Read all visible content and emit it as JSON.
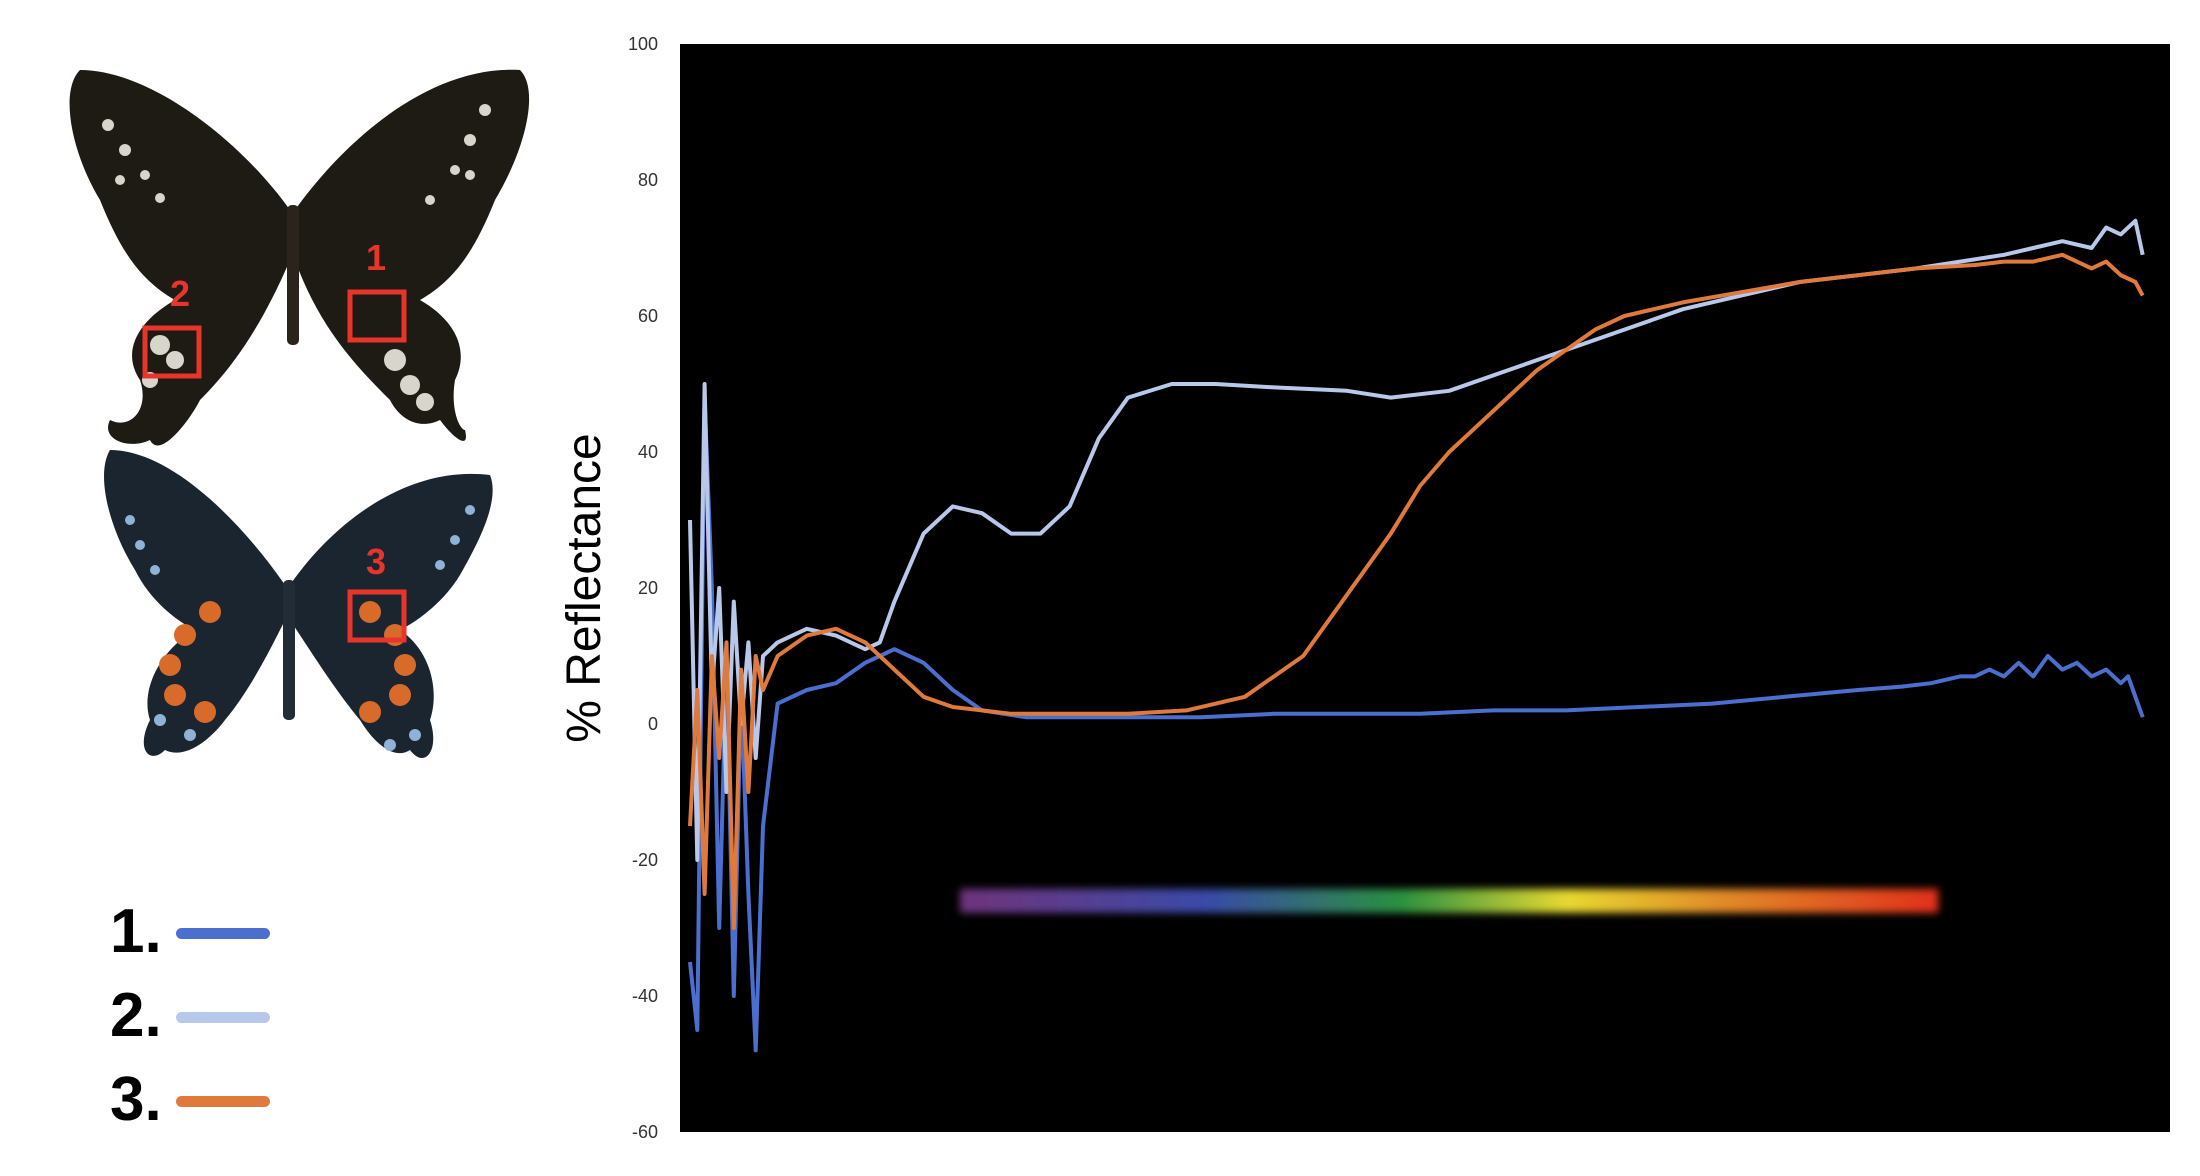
{
  "figure": {
    "boxes": [
      {
        "label": "1"
      },
      {
        "label": "2"
      },
      {
        "label": "3"
      }
    ],
    "butterfly_colors": {
      "top_wing": "#1e1a14",
      "bottom_wing": "#1b2530",
      "spot_pale": "#d8d6cc",
      "spot_blue": "#8fb2d6",
      "spot_orange": "#d86a2a",
      "box": "#e8352c"
    }
  },
  "legend": [
    {
      "label": "1.",
      "color": "#4a6fcf"
    },
    {
      "label": "2.",
      "color": "#b8c8ea"
    },
    {
      "label": "3.",
      "color": "#e07a3c"
    }
  ],
  "chart_data": {
    "type": "line",
    "title": "",
    "xlabel": "",
    "ylabel": "% Reflectance",
    "ylim": [
      -60,
      100
    ],
    "yticks": [
      100,
      80,
      60,
      40,
      20,
      0,
      -20,
      -40,
      -60
    ],
    "xlim": [
      0,
      100
    ],
    "background": "#000000",
    "grid": false,
    "series": [
      {
        "name": "1.",
        "color": "#4a6fcf",
        "x": [
          0,
          0.5,
          1,
          1.5,
          2,
          2.5,
          3,
          3.5,
          4,
          4.5,
          5,
          6,
          8,
          10,
          12,
          14,
          16,
          18,
          20,
          23,
          26,
          30,
          35,
          40,
          45,
          50,
          55,
          60,
          65,
          70,
          75,
          80,
          83,
          85,
          87,
          88,
          89,
          90,
          91,
          92,
          93,
          94,
          95,
          96,
          97,
          98,
          98.5,
          99,
          99.5
        ],
        "values": [
          -35,
          -45,
          48,
          20,
          -30,
          10,
          -40,
          5,
          -25,
          -48,
          -15,
          3,
          5,
          6,
          9,
          11,
          9,
          5,
          2,
          1,
          1,
          1,
          1,
          1.5,
          1.5,
          1.5,
          2,
          2,
          2.5,
          3,
          4,
          5,
          5.5,
          6,
          7,
          7,
          8,
          7,
          9,
          7,
          10,
          8,
          9,
          7,
          8,
          6,
          7,
          4,
          1
        ]
      },
      {
        "name": "2.",
        "color": "#b8c8ea",
        "x": [
          0,
          0.5,
          1,
          1.5,
          2,
          2.5,
          3,
          3.5,
          4,
          4.5,
          5,
          6,
          8,
          10,
          12,
          13,
          14,
          16,
          18,
          20,
          22,
          24,
          26,
          28,
          30,
          33,
          36,
          40,
          45,
          48,
          52,
          56,
          60,
          64,
          68,
          72,
          76,
          80,
          84,
          87,
          90,
          92,
          94,
          96,
          97,
          98,
          99,
          99.5
        ],
        "values": [
          30,
          -20,
          50,
          5,
          20,
          -10,
          18,
          0,
          12,
          -5,
          10,
          12,
          14,
          13,
          11,
          12,
          18,
          28,
          32,
          31,
          28,
          28,
          32,
          42,
          48,
          50,
          50,
          49.5,
          49,
          48,
          49,
          52,
          55,
          58,
          61,
          63,
          65,
          66,
          67,
          68,
          69,
          70,
          71,
          70,
          73,
          72,
          74,
          69
        ]
      },
      {
        "name": "3.",
        "color": "#e07a3c",
        "x": [
          0,
          0.5,
          1,
          1.5,
          2,
          2.5,
          3,
          3.5,
          4,
          4.5,
          5,
          6,
          8,
          10,
          12,
          14,
          16,
          18,
          20,
          22,
          26,
          30,
          34,
          38,
          42,
          44,
          46,
          48,
          50,
          52,
          54,
          56,
          58,
          60,
          62,
          64,
          66,
          68,
          72,
          76,
          80,
          84,
          88,
          90,
          92,
          94,
          96,
          97,
          98,
          99,
          99.5
        ],
        "values": [
          -15,
          5,
          -25,
          10,
          -5,
          12,
          -30,
          8,
          -10,
          10,
          5,
          10,
          13,
          14,
          12,
          8,
          4,
          2.5,
          2,
          1.5,
          1.5,
          1.5,
          2,
          4,
          10,
          16,
          22,
          28,
          35,
          40,
          44,
          48,
          52,
          55,
          58,
          60,
          61,
          62,
          63.5,
          65,
          66,
          67,
          67.5,
          68,
          68,
          69,
          67,
          68,
          66,
          65,
          63
        ]
      }
    ],
    "spectrum_bar": {
      "y": -26,
      "x_from": 18.5,
      "x_to": 85.5,
      "colors": [
        "#5a2a6a",
        "#3a4aa0",
        "#2a8a4a",
        "#d8d030",
        "#e08a20",
        "#e03a20"
      ]
    }
  }
}
